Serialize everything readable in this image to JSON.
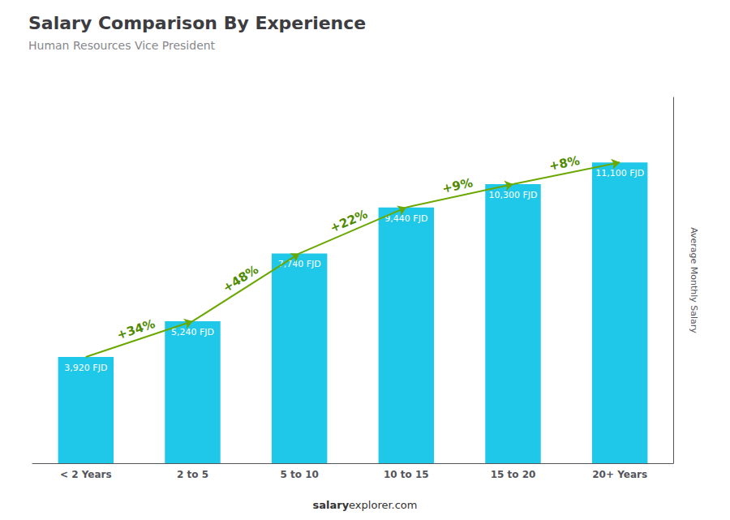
{
  "chart_data": {
    "type": "bar",
    "title": "Salary Comparison By Experience",
    "subtitle": "Human Resources Vice President",
    "categories": [
      "< 2 Years",
      "2 to 5",
      "5 to 10",
      "10 to 15",
      "15 to 20",
      "20+ Years"
    ],
    "values": [
      3920,
      5240,
      7740,
      9440,
      10300,
      11100
    ],
    "value_labels": [
      "3,920 FJD",
      "5,240 FJD",
      "7,740 FJD",
      "9,440 FJD",
      "10,300 FJD",
      "11,100 FJD"
    ],
    "data_labels": true,
    "color": "#1fc8e8",
    "ylabel": "Average Monthly Salary",
    "ylim": [
      0,
      13500
    ],
    "tick_labels": "x",
    "grid": false,
    "annotations": [
      {
        "text": "+34%",
        "from": "< 2 Years",
        "to": "2 to 5"
      },
      {
        "text": "+48%",
        "from": "2 to 5",
        "to": "5 to 10"
      },
      {
        "text": "+22%",
        "from": "5 to 10",
        "to": "10 to 15"
      },
      {
        "text": "+9%",
        "from": "10 to 15",
        "to": "15 to 20"
      },
      {
        "text": "+8%",
        "from": "15 to 20",
        "to": "20+ Years"
      }
    ],
    "footer": [
      "salary",
      "explorer.com"
    ]
  }
}
